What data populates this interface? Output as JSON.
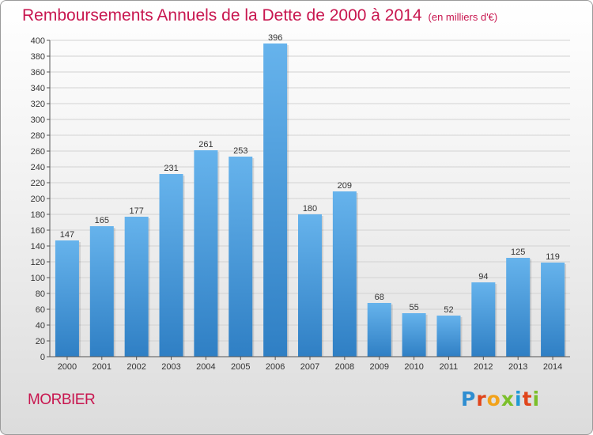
{
  "title": "Remboursements Annuels de la Dette de 2000 à 2014",
  "unit": "(en milliers d'€)",
  "commune": "MORBIER",
  "logo": {
    "text": "Proxiti",
    "letters": [
      "P",
      "r",
      "o",
      "x",
      "i",
      "t",
      "i"
    ]
  },
  "colors": {
    "title": "#c8164f",
    "bar_top": "#66b3ec",
    "bar_bottom": "#2f7fc4"
  },
  "chart_data": {
    "type": "bar",
    "title": "Remboursements Annuels de la Dette de 2000 à 2014",
    "categories": [
      "2000",
      "2001",
      "2002",
      "2003",
      "2004",
      "2005",
      "2006",
      "2007",
      "2008",
      "2009",
      "2010",
      "2011",
      "2012",
      "2013",
      "2014"
    ],
    "values": [
      147,
      165,
      177,
      231,
      261,
      253,
      396,
      180,
      209,
      68,
      55,
      52,
      94,
      125,
      119
    ],
    "ylim": [
      0,
      400
    ],
    "yticks": [
      0,
      20,
      40,
      60,
      80,
      100,
      120,
      140,
      160,
      180,
      200,
      220,
      240,
      260,
      280,
      300,
      320,
      340,
      360,
      380,
      400
    ],
    "grid": true,
    "xlabel": "",
    "ylabel": ""
  }
}
